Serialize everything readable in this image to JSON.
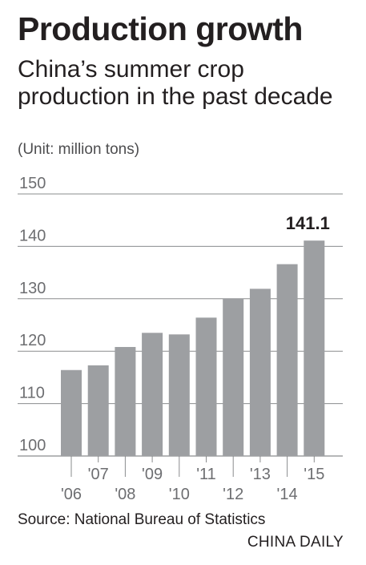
{
  "header": {
    "title": "Production growth",
    "subtitle": "China’s summer crop production in the past decade",
    "unit": "(Unit: million tons)"
  },
  "footer": {
    "source": "Source: National Bureau of Statistics",
    "brand": "CHINA DAILY"
  },
  "colors": {
    "bar": "#9d9fa2",
    "grid": "#8a8c8e",
    "text": "#231f20"
  },
  "chart_data": {
    "type": "bar",
    "categories": [
      "'06",
      "'07",
      "'08",
      "'09",
      "'10",
      "'11",
      "'12",
      "'13",
      "'14",
      "'15"
    ],
    "values": [
      116.4,
      117.3,
      120.8,
      123.5,
      123.2,
      126.4,
      130,
      131.9,
      136.6,
      141.1
    ],
    "ylim": [
      100,
      150
    ],
    "yticks": [
      100,
      110,
      120,
      130,
      140,
      150
    ],
    "grid": true,
    "annotations": [
      {
        "category": "'15",
        "text": "141.1"
      }
    ]
  }
}
